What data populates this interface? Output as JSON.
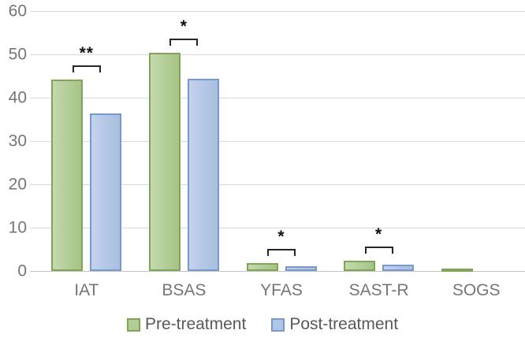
{
  "chart_data": {
    "type": "bar",
    "title": "",
    "xlabel": "",
    "ylabel": "",
    "categories": [
      "IAT",
      "BSAS",
      "YFAS",
      "SAST-R",
      "SOGS"
    ],
    "series": [
      {
        "name": "Pre-treatment",
        "values": [
          44.2,
          50.3,
          1.8,
          2.3,
          0.6
        ],
        "fill_color": "#b5cd99",
        "border_color": "#7fa556"
      },
      {
        "name": "Post-treatment",
        "values": [
          36.4,
          44.4,
          1.1,
          1.5,
          0
        ],
        "fill_color": "#b4c7e6",
        "border_color": "#7a99cb"
      }
    ],
    "ylim": [
      0,
      60
    ],
    "ytick_step": 10,
    "yticks": [
      "0",
      "10",
      "20",
      "30",
      "40",
      "50",
      "60"
    ],
    "grid": true,
    "gridline_color": "#d9d9d9",
    "axis_text_color": "#757575",
    "legend_position": "bottom",
    "annotations": [
      {
        "category": "IAT",
        "label": "**"
      },
      {
        "category": "BSAS",
        "label": "*"
      },
      {
        "category": "YFAS",
        "label": "*"
      },
      {
        "category": "SAST-R",
        "label": "*"
      }
    ]
  },
  "legend": {
    "items": [
      {
        "label": "Pre-treatment",
        "swatch": "green-square"
      },
      {
        "label": "Post-treatment",
        "swatch": "blue-square"
      }
    ]
  }
}
